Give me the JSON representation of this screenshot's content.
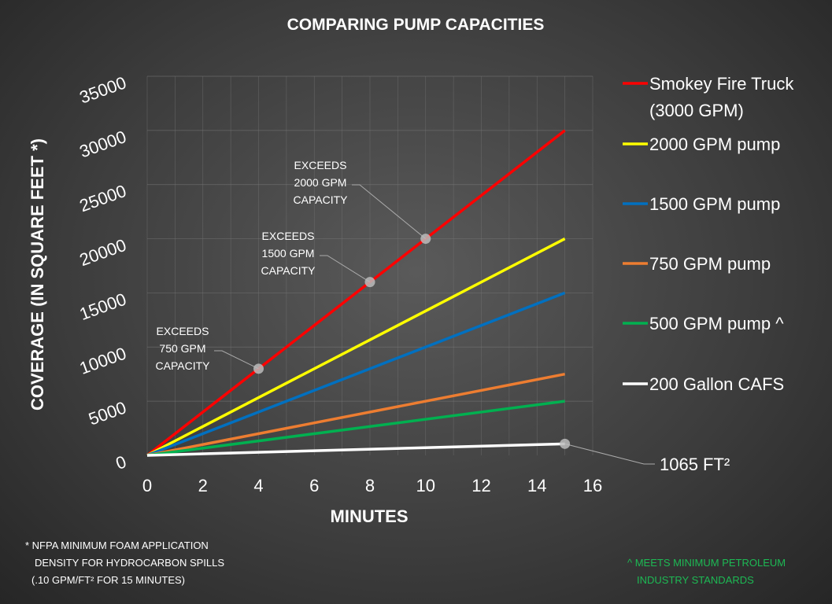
{
  "chart_data": {
    "type": "line",
    "title": "COMPARING PUMP CAPACITIES",
    "xlabel": "MINUTES",
    "ylabel": "COVERAGE (IN SQUARE FEET *)",
    "xlim": [
      0,
      16
    ],
    "ylim": [
      0,
      35000
    ],
    "xticks": [
      0,
      2,
      4,
      6,
      8,
      10,
      12,
      14,
      16
    ],
    "yticks": [
      0,
      5000,
      10000,
      15000,
      20000,
      25000,
      30000,
      35000
    ],
    "grid": true,
    "legend": "right",
    "series": [
      {
        "name": "Smokey Fire Truck (3000 GPM)",
        "legend_lines": [
          "Smokey Fire Truck",
          "(3000 GPM)"
        ],
        "color": "#ff0000",
        "x": [
          0,
          15
        ],
        "y": [
          0,
          30000
        ]
      },
      {
        "name": "2000 GPM pump",
        "legend_lines": [
          "2000 GPM pump"
        ],
        "color": "#ffff00",
        "x": [
          0,
          15
        ],
        "y": [
          0,
          20000
        ]
      },
      {
        "name": "1500 GPM pump",
        "legend_lines": [
          "1500 GPM pump"
        ],
        "color": "#0070c0",
        "x": [
          0,
          15
        ],
        "y": [
          0,
          15000
        ]
      },
      {
        "name": "750 GPM pump",
        "legend_lines": [
          "750 GPM pump"
        ],
        "color": "#ed7d31",
        "x": [
          0,
          15
        ],
        "y": [
          0,
          7500
        ]
      },
      {
        "name": "500 GPM pump ^",
        "legend_lines": [
          "500 GPM pump ^"
        ],
        "color": "#00b050",
        "x": [
          0,
          15
        ],
        "y": [
          0,
          5000
        ]
      },
      {
        "name": "200 Gallon CAFS",
        "legend_lines": [
          "200 Gallon CAFS"
        ],
        "color": "#ffffff",
        "x": [
          0,
          15
        ],
        "y": [
          0,
          1065
        ]
      }
    ],
    "annotations": [
      {
        "x": 4,
        "y": 8000,
        "lines": [
          "EXCEEDS",
          "750 GPM",
          "CAPACITY"
        ]
      },
      {
        "x": 8,
        "y": 16000,
        "lines": [
          "EXCEEDS",
          "1500 GPM",
          "CAPACITY"
        ]
      },
      {
        "x": 10,
        "y": 20000,
        "lines": [
          "EXCEEDS",
          "2000 GPM",
          "CAPACITY"
        ]
      },
      {
        "x": 15,
        "y": 1065,
        "lines": [
          "1065 FT²"
        ]
      }
    ]
  },
  "footnotes": {
    "left": [
      "* NFPA MINIMUM FOAM APPLICATION",
      "DENSITY FOR HYDROCARBON SPILLS",
      "(.10 GPM/FT² FOR 15 MINUTES)"
    ],
    "right": [
      "^ MEETS MINIMUM PETROLEUM",
      "INDUSTRY STANDARDS"
    ]
  }
}
